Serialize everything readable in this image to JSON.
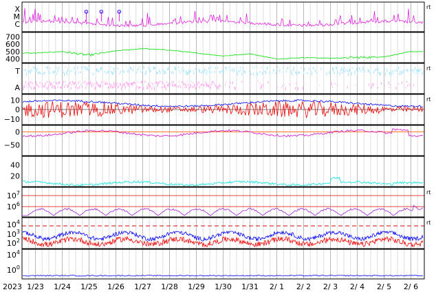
{
  "chart_data": [
    {
      "type": "line",
      "panel": "xray",
      "y_labels": [
        "X",
        "M",
        "C"
      ],
      "right_tag": "rt",
      "colors": {
        "line": "#e020e0",
        "marker": "#3020ff"
      },
      "flare_markers": [
        {
          "x": "2023-01-24T21:30",
          "class": "M"
        },
        {
          "x": "2023-01-25T11:00",
          "class": "M"
        },
        {
          "x": "2023-01-26T03:00",
          "class": "M"
        }
      ]
    },
    {
      "type": "line",
      "panel": "solar-wind-speed",
      "yticks": [
        "700",
        "600",
        "500",
        "400"
      ],
      "ylim": [
        350,
        760
      ],
      "colors": {
        "line": "#00e000"
      },
      "series": [
        {
          "x": [
            "2023-01-22",
            "2023-01-23",
            "2023-01-24",
            "2023-01-25",
            "2023-01-26",
            "2023-01-27",
            "2023-01-28",
            "2023-01-29",
            "2023-01-30",
            "2023-01-31",
            "2023-02-01",
            "2023-02-02",
            "2023-02-03",
            "2023-02-04",
            "2023-02-05",
            "2023-02-06"
          ],
          "values": [
            480,
            480,
            500,
            450,
            510,
            540,
            520,
            480,
            440,
            470,
            400,
            420,
            410,
            420,
            430,
            500
          ]
        }
      ]
    },
    {
      "type": "scatter",
      "panel": "temperature-abundance",
      "y_labels": [
        "T",
        "A"
      ],
      "right_tag": "rt",
      "colors": {
        "T": "#aee8ff",
        "A": "#ffb0f0"
      }
    },
    {
      "type": "line",
      "panel": "imf",
      "yticks": [
        "10",
        "0",
        "−10"
      ],
      "ylim": [
        -16,
        16
      ],
      "right_tag": "rt",
      "colors": {
        "bt": "#0000ee",
        "bz": "#ee0000"
      }
    },
    {
      "type": "line",
      "panel": "phi-angle",
      "yticks": [
        "0",
        "−50"
      ],
      "ylim": [
        -90,
        25
      ],
      "colors": {
        "line": "#d020d0",
        "ref": "#ff6000"
      }
    },
    {
      "type": "line",
      "panel": "density",
      "yticks": [
        "40",
        "20"
      ],
      "ylim": [
        0,
        56
      ],
      "colors": {
        "line": "#00e0e0"
      }
    },
    {
      "type": "line",
      "panel": "electron-flux",
      "yticks": [
        {
          "base": "10",
          "exp": "7"
        },
        {
          "base": "10",
          "exp": "6"
        }
      ],
      "right_tag": "rt",
      "colors": {
        "line": "#a020d0",
        "threshold": "#dd0000"
      }
    },
    {
      "type": "line",
      "panel": "proton-flux",
      "yticks": [
        {
          "base": "10",
          "exp": "4"
        },
        {
          "base": "10",
          "exp": "3"
        },
        {
          "base": "10",
          "exp": "2"
        }
      ],
      "right_tag": "rt",
      "colors": {
        "high": "#ee0000",
        "low": "#0000ee",
        "threshold": "#dd0000"
      }
    },
    {
      "type": "line",
      "panel": "high-energy-proton",
      "yticks": [
        {
          "base": "10",
          "exp": "4"
        },
        {
          "base": "10",
          "exp": "0"
        }
      ],
      "colors": {
        "line": "#0000ee"
      }
    }
  ],
  "x_axis": {
    "year_label": "2023",
    "tick_labels": [
      "1/23",
      "1/24",
      "1/25",
      "1/26",
      "1/27",
      "1/28",
      "1/29",
      "1/30",
      "1/31",
      "2/ 1",
      "2/ 2",
      "2/ 3",
      "2/ 4",
      "2/ 5",
      "2/ 6"
    ],
    "range": [
      "2023-01-22T12:00",
      "2023-02-06T12:00"
    ]
  }
}
